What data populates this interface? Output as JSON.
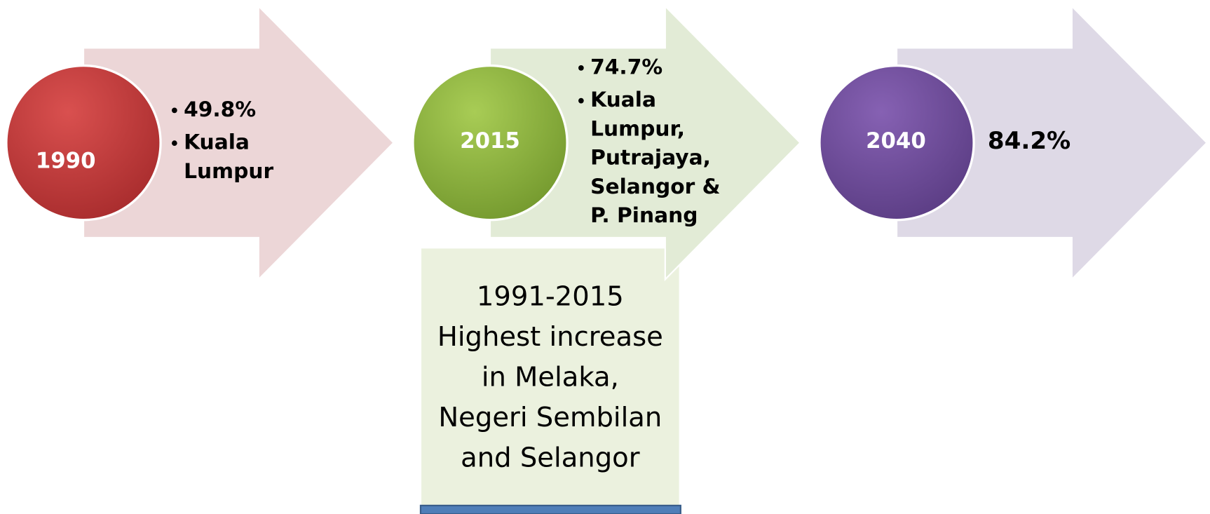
{
  "stages": [
    {
      "year": "1990",
      "bullets": [
        [
          "49.8%"
        ],
        [
          "Kuala",
          "Lumpur"
        ]
      ]
    },
    {
      "year": "2015",
      "bullets": [
        [
          "74.7%"
        ],
        [
          "Kuala",
          "Lumpur,",
          "Putrajaya,",
          "Selangor &",
          "P. Pinang"
        ]
      ]
    },
    {
      "year": "2040",
      "text": "84.2%"
    }
  ],
  "note": {
    "lines": [
      "1991-2015",
      "Highest increase",
      "in Melaka,",
      "Negeri Sembilan",
      "and Selangor"
    ]
  }
}
